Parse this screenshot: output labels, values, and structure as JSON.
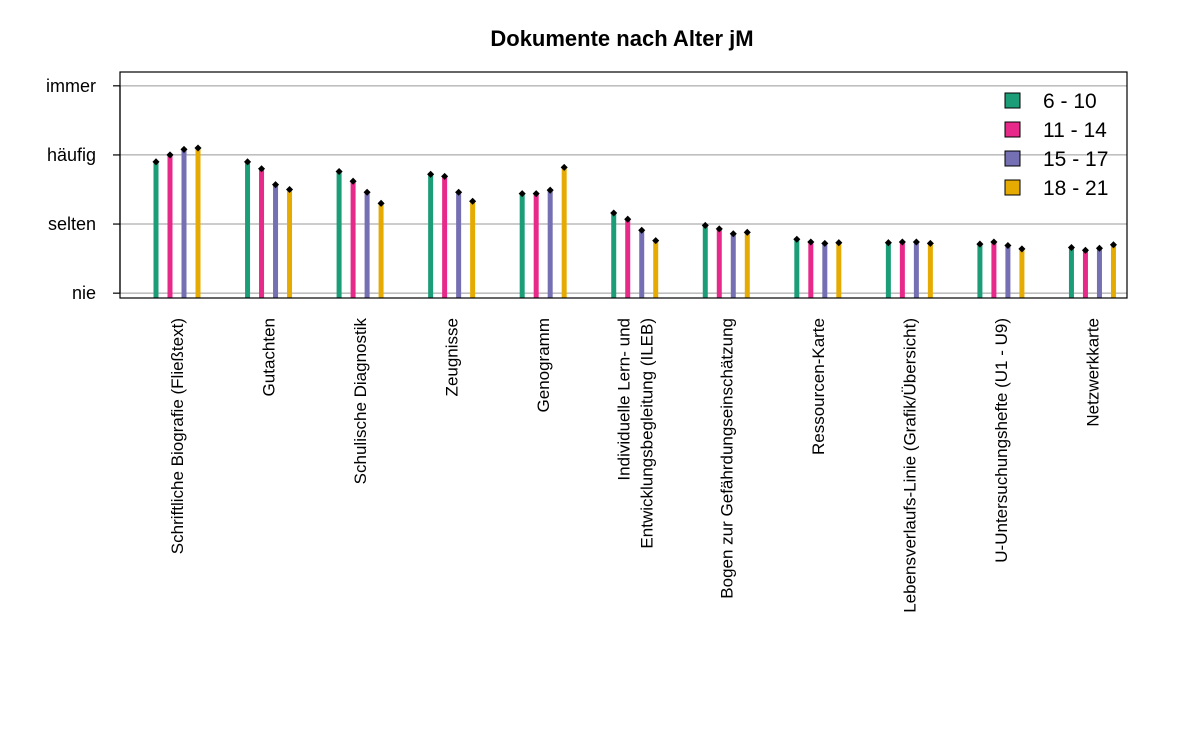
{
  "chart_data": {
    "type": "bar",
    "title": "Dokumente nach Alter jM",
    "xlabel": "",
    "ylabel": "",
    "y_levels": [
      "nie",
      "selten",
      "häufig",
      "immer"
    ],
    "ylim": [
      0.93,
      4.2
    ],
    "grid": "horizontal",
    "legend_position": "top-right",
    "categories": [
      [
        "Schriftliche Biografie (Fließtext)"
      ],
      [
        "Gutachten"
      ],
      [
        "Schulische Diagnostik"
      ],
      [
        "Zeugnisse"
      ],
      [
        "Genogramm"
      ],
      [
        "Individuelle Lern- und",
        "Entwicklungsbegleitung (ILEB)"
      ],
      [
        "Bogen zur Gefährdungseinschätzung"
      ],
      [
        "Ressourcen-Karte"
      ],
      [
        "Lebensverlaufs-Linie (Grafik/Übersicht)"
      ],
      [
        "U-Untersuchungshefte (U1 - U9)"
      ],
      [
        "Netzwerkkarte"
      ]
    ],
    "series": [
      {
        "name": "6 - 10",
        "color": "#1b9e77",
        "values": [
          2.9,
          2.9,
          2.76,
          2.72,
          2.44,
          2.16,
          1.98,
          1.78,
          1.73,
          1.71,
          1.66
        ]
      },
      {
        "name": "11 - 14",
        "color": "#e7298a",
        "values": [
          3.0,
          2.8,
          2.62,
          2.69,
          2.44,
          2.07,
          1.93,
          1.74,
          1.74,
          1.74,
          1.62
        ]
      },
      {
        "name": "15 - 17",
        "color": "#7570b3",
        "values": [
          3.08,
          2.57,
          2.46,
          2.46,
          2.49,
          1.91,
          1.86,
          1.72,
          1.74,
          1.69,
          1.65
        ]
      },
      {
        "name": "18 - 21",
        "color": "#e6ab02",
        "values": [
          3.1,
          2.5,
          2.3,
          2.33,
          2.82,
          1.76,
          1.88,
          1.73,
          1.72,
          1.64,
          1.7
        ]
      }
    ]
  }
}
